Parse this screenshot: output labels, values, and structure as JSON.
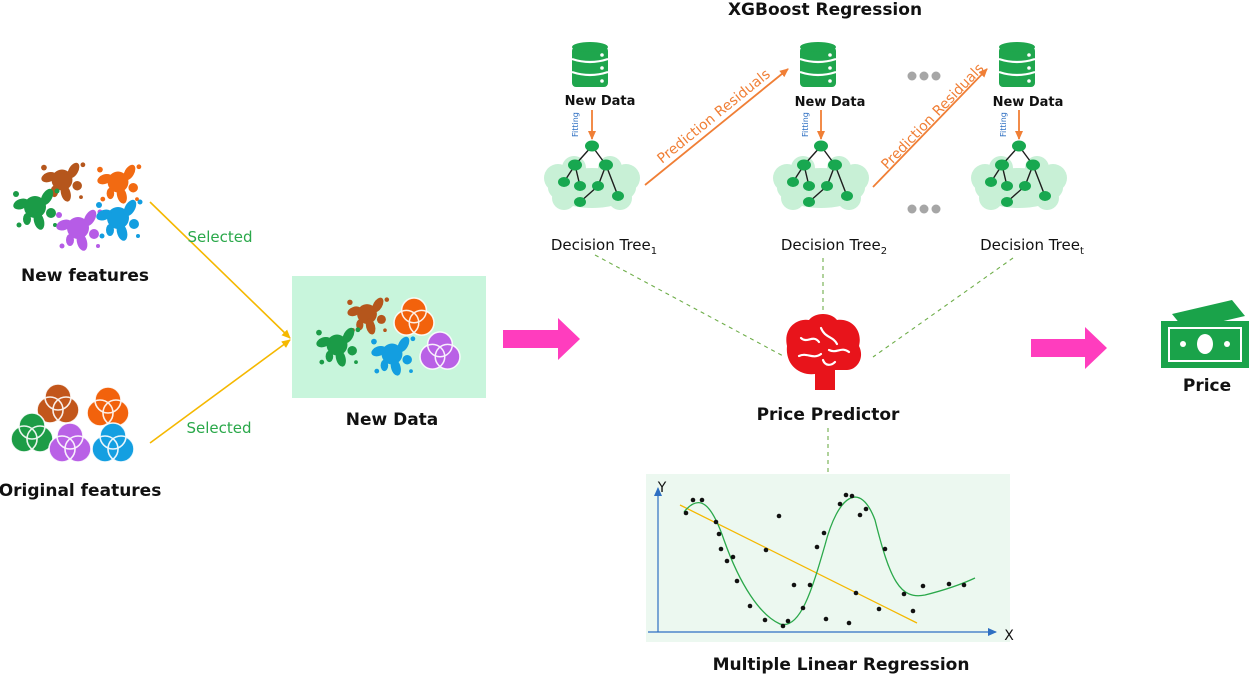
{
  "title": "XGBoost Regression",
  "left": {
    "new_features_label": "New features",
    "original_features_label": "Original features",
    "selected_label_top": "Selected",
    "selected_label_bottom": "Selected"
  },
  "merged": {
    "label": "New Data"
  },
  "trees": [
    {
      "data_label": "New Data",
      "fitting_label": "Fitting",
      "tree_label": "Decision Tree",
      "tree_subscript": "1"
    },
    {
      "data_label": "New Data",
      "fitting_label": "Fitting",
      "tree_label": "Decision Tree",
      "tree_subscript": "2"
    },
    {
      "data_label": "New Data",
      "fitting_label": "Fitting",
      "tree_label": "Decision Tree",
      "tree_subscript": "t"
    }
  ],
  "residuals": [
    "Prediction Residuals",
    "Prediction Residuals"
  ],
  "predictor": {
    "label": "Price Predictor"
  },
  "output": {
    "label": "Price"
  },
  "regression": {
    "label": "Multiple Linear Regression",
    "x_axis": "X",
    "y_axis": "Y"
  },
  "colors": {
    "accent_pink": "#ff3dbe",
    "residual_orange": "#f07f36",
    "selected_green": "#2aa84a",
    "arrow_yellow": "#f5b800",
    "tree_green": "#18a850",
    "brain_red": "#e8141b",
    "money_green": "#1aa34a"
  },
  "icons": [
    "splash-icon",
    "venn-icon",
    "database-icon",
    "tree-icon",
    "brain-icon",
    "money-icon",
    "ellipsis-icon"
  ]
}
